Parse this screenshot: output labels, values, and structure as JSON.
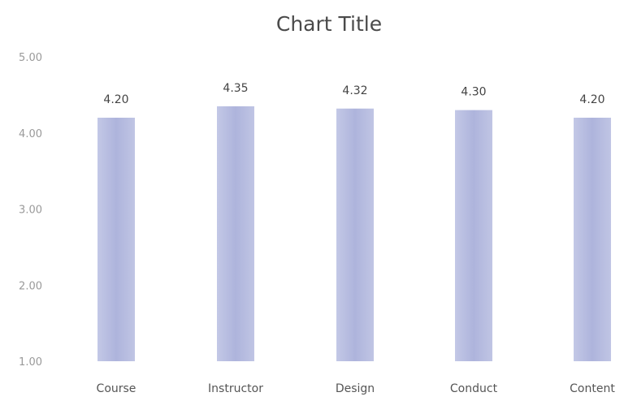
{
  "chart_data": {
    "type": "bar",
    "title": "Chart Title",
    "xlabel": "",
    "ylabel": "",
    "categories": [
      "Course",
      "Instructor",
      "Design",
      "Conduct",
      "Content"
    ],
    "values": [
      4.2,
      4.35,
      4.32,
      4.3,
      4.2
    ],
    "value_labels": [
      "4.20",
      "4.35",
      "4.32",
      "4.30",
      "4.20"
    ],
    "ylim": [
      1.0,
      5.0
    ],
    "yticks": [
      1.0,
      2.0,
      3.0,
      4.0,
      5.0
    ],
    "ytick_labels": [
      "1.00",
      "2.00",
      "3.00",
      "4.00",
      "5.00"
    ],
    "grid": false,
    "legend": "none",
    "bar_color": "#b9bfe0",
    "bar_color_dark": "#a7aed8"
  }
}
